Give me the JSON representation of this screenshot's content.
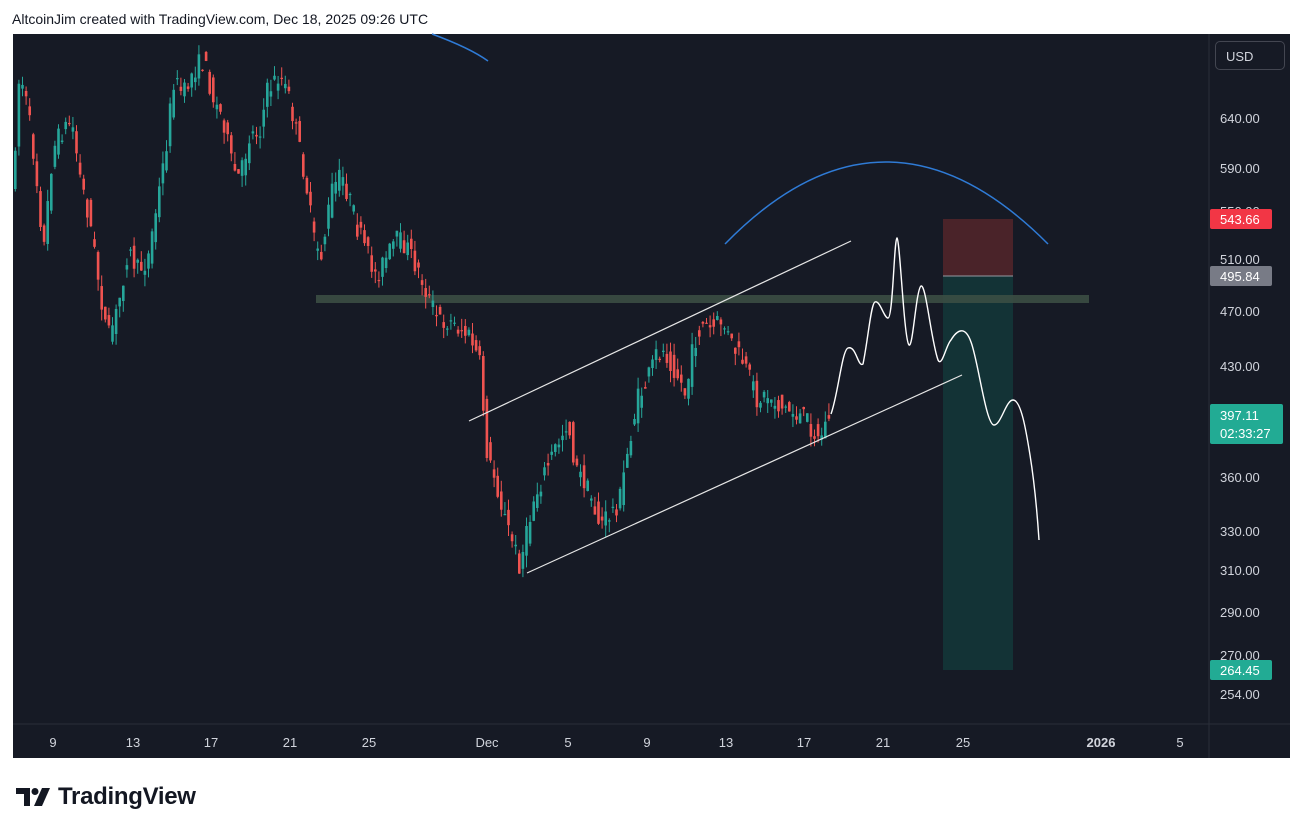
{
  "header": {
    "text": "AltcoinJim created with TradingView.com, Dec 18, 2025 09:26 UTC"
  },
  "currency": "USD",
  "footer": {
    "brand": "TradingView",
    "logo_icon": "tradingview-logo-icon"
  },
  "colors": {
    "background": "#161a25",
    "up": "#26a69a",
    "down": "#ef5350",
    "stop_zone": "#4a2329",
    "target_zone": "#133336",
    "arc": "#2f7bd6",
    "resistance": "#3b4e44"
  },
  "chart_data": {
    "type": "candlestick",
    "y_axis": {
      "ticks": [
        "640.00",
        "590.00",
        "550.00",
        "510.00",
        "470.00",
        "430.00",
        "360.00",
        "330.00",
        "310.00",
        "290.00",
        "270.00",
        "254.00"
      ]
    },
    "x_axis": {
      "ticks": [
        "9",
        "13",
        "17",
        "21",
        "25",
        "Dec",
        "5",
        "9",
        "13",
        "17",
        "21",
        "25",
        "2026",
        "5"
      ]
    },
    "price_tags": [
      {
        "name": "stop",
        "value": "543.66",
        "color": "#f23645"
      },
      {
        "name": "entry",
        "value": "495.84",
        "color": "#787b86"
      },
      {
        "name": "last",
        "value": "397.11",
        "countdown": "02:33:27",
        "color": "#22ab94"
      },
      {
        "name": "target",
        "value": "264.45",
        "color": "#22ab94"
      }
    ],
    "annotations": {
      "resistance_zone": {
        "price_top": 480,
        "price_bottom": 474
      },
      "channel": {
        "upper": [
          [
            "Nov 29",
            415
          ],
          [
            "Dec 19",
            520
          ]
        ],
        "lower": [
          [
            "Dec 2",
            308
          ],
          [
            "Dec 24",
            428
          ]
        ]
      },
      "short_position": {
        "entry": 495.84,
        "stop": 543.66,
        "target": 264.45
      }
    }
  }
}
